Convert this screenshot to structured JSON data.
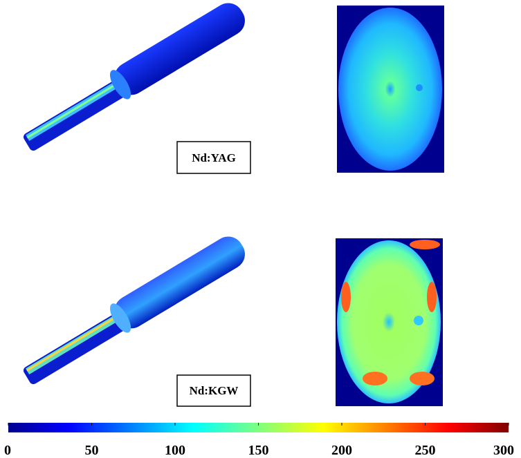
{
  "panels": [
    {
      "label": "Nd:YAG"
    },
    {
      "label": "Nd:KGW"
    }
  ],
  "colorbar": {
    "lim": [
      0,
      300
    ],
    "ticks": [
      0,
      50,
      100,
      150,
      200,
      250,
      300
    ]
  }
}
